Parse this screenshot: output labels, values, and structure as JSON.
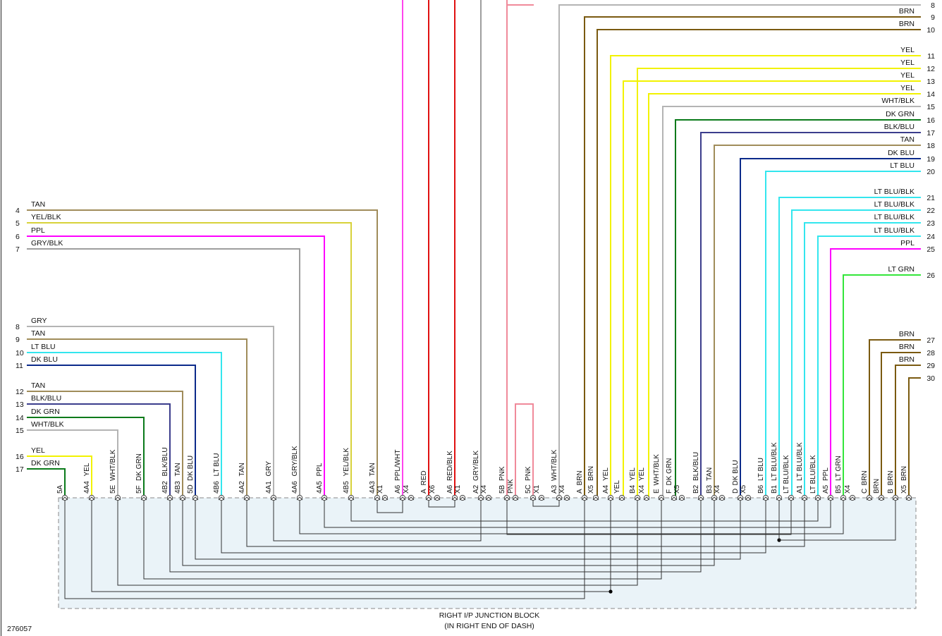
{
  "colors": {
    "TAN": "#a08c5a",
    "YEL/BLK": "#d8d23a",
    "PPL": "#ff00ff",
    "GRY/BLK": "#9e9e9e",
    "GRY": "#b4b4b4",
    "LT BLU": "#33e6ee",
    "DK BLU": "#0b2a8a",
    "BLK/BLU": "#3b3d8c",
    "DK GRN": "#0a7a1a",
    "WHT/BLK": "#b4b4b4",
    "YEL": "#f2f200",
    "PPL/WHT": "#ff44ee",
    "RED": "#e01010",
    "RED/BLK": "#e01010",
    "PNK": "#f08a9a",
    "BRN": "#7a5a10",
    "LT BLU/BLK": "#33e6ee",
    "LT GRN": "#33e63a"
  },
  "block": {
    "title": "RIGHT I/P JUNCTION BLOCK",
    "subtitle": "(IN RIGHT END OF DASH)",
    "fill": "#eaf3f8"
  },
  "figure_id": "276057",
  "left_wires": [
    {
      "num": "4",
      "label": "TAN",
      "color": "TAN"
    },
    {
      "num": "5",
      "label": "YEL/BLK",
      "color": "YEL/BLK"
    },
    {
      "num": "6",
      "label": "PPL",
      "color": "PPL"
    },
    {
      "num": "7",
      "label": "GRY/BLK",
      "color": "GRY/BLK"
    },
    {
      "num": "8",
      "label": "GRY",
      "color": "GRY"
    },
    {
      "num": "9",
      "label": "TAN",
      "color": "TAN"
    },
    {
      "num": "10",
      "label": "LT BLU",
      "color": "LT BLU"
    },
    {
      "num": "11",
      "label": "DK BLU",
      "color": "DK BLU"
    },
    {
      "num": "12",
      "label": "TAN",
      "color": "TAN"
    },
    {
      "num": "13",
      "label": "BLK/BLU",
      "color": "BLK/BLU"
    },
    {
      "num": "14",
      "label": "DK GRN",
      "color": "DK GRN"
    },
    {
      "num": "15",
      "label": "WHT/BLK",
      "color": "WHT/BLK"
    },
    {
      "num": "16",
      "label": "YEL",
      "color": "YEL"
    },
    {
      "num": "17",
      "label": "DK GRN",
      "color": "DK GRN"
    }
  ],
  "right_wires": [
    {
      "num": "8",
      "label": "",
      "color": "GRY"
    },
    {
      "num": "9",
      "label": "BRN",
      "color": "BRN"
    },
    {
      "num": "10",
      "label": "BRN",
      "color": "BRN"
    },
    {
      "num": "11",
      "label": "YEL",
      "color": "YEL"
    },
    {
      "num": "12",
      "label": "YEL",
      "color": "YEL"
    },
    {
      "num": "13",
      "label": "YEL",
      "color": "YEL"
    },
    {
      "num": "14",
      "label": "YEL",
      "color": "YEL"
    },
    {
      "num": "15",
      "label": "WHT/BLK",
      "color": "WHT/BLK"
    },
    {
      "num": "16",
      "label": "DK GRN",
      "color": "DK GRN"
    },
    {
      "num": "17",
      "label": "BLK/BLU",
      "color": "BLK/BLU"
    },
    {
      "num": "18",
      "label": "TAN",
      "color": "TAN"
    },
    {
      "num": "19",
      "label": "DK BLU",
      "color": "DK BLU"
    },
    {
      "num": "20",
      "label": "LT BLU",
      "color": "LT BLU"
    },
    {
      "num": "21",
      "label": "LT BLU/BLK",
      "color": "LT BLU/BLK"
    },
    {
      "num": "22",
      "label": "LT BLU/BLK",
      "color": "LT BLU/BLK"
    },
    {
      "num": "23",
      "label": "LT BLU/BLK",
      "color": "LT BLU/BLK"
    },
    {
      "num": "24",
      "label": "LT BLU/BLK",
      "color": "LT BLU/BLK"
    },
    {
      "num": "25",
      "label": "PPL",
      "color": "PPL"
    },
    {
      "num": "26",
      "label": "LT GRN",
      "color": "LT GRN"
    },
    {
      "num": "27",
      "label": "BRN",
      "color": "BRN"
    },
    {
      "num": "28",
      "label": "BRN",
      "color": "BRN"
    },
    {
      "num": "29",
      "label": "BRN",
      "color": "BRN"
    },
    {
      "num": "30",
      "label": "",
      "color": "BRN"
    }
  ],
  "terminals": [
    {
      "pin": "5A",
      "wire": ""
    },
    {
      "pin": "4A4",
      "wire": "YEL"
    },
    {
      "pin": "5E",
      "wire": "WHT/BLK"
    },
    {
      "pin": "5F",
      "wire": "DK GRN"
    },
    {
      "pin": "4B2",
      "wire": "BLK/BLU"
    },
    {
      "pin": "4B3",
      "wire": "TAN"
    },
    {
      "pin": "5D",
      "wire": "DK BLU"
    },
    {
      "pin": "4B6",
      "wire": "LT BLU"
    },
    {
      "pin": "4A2",
      "wire": "TAN"
    },
    {
      "pin": "4A1",
      "wire": "GRY"
    },
    {
      "pin": "4A6",
      "wire": "GRY/BLK"
    },
    {
      "pin": "4A5",
      "wire": "PPL"
    },
    {
      "pin": "4B5",
      "wire": "YEL/BLK"
    },
    {
      "pin": "4A3",
      "wire": "TAN"
    },
    {
      "pin": "X1",
      "wire": ""
    },
    {
      "pin": "A6",
      "wire": "PPL/WHT"
    },
    {
      "pin": "X4",
      "wire": ""
    },
    {
      "pin": "A",
      "wire": "RED"
    },
    {
      "pin": "X6",
      "wire": ""
    },
    {
      "pin": "A6",
      "wire": "RED/BLK"
    },
    {
      "pin": "X1",
      "wire": ""
    },
    {
      "pin": "A2",
      "wire": "GRY/BLK"
    },
    {
      "pin": "X4",
      "wire": ""
    },
    {
      "pin": "5B",
      "wire": "PNK"
    },
    {
      "pin": "",
      "wire": "PNK"
    },
    {
      "pin": "5C",
      "wire": "PNK"
    },
    {
      "pin": "X1",
      "wire": ""
    },
    {
      "pin": "A3",
      "wire": "WHT/BLK"
    },
    {
      "pin": "X4",
      "wire": ""
    },
    {
      "pin": "A",
      "wire": "BRN"
    },
    {
      "pin": "X5",
      "wire": "BRN"
    },
    {
      "pin": "A4",
      "wire": "YEL"
    },
    {
      "pin": "",
      "wire": "YEL"
    },
    {
      "pin": "B4",
      "wire": "YEL"
    },
    {
      "pin": "X4",
      "wire": "YEL"
    },
    {
      "pin": "E",
      "wire": "WHT/BLK"
    },
    {
      "pin": "F",
      "wire": "DK GRN"
    },
    {
      "pin": "X5",
      "wire": ""
    },
    {
      "pin": "B2",
      "wire": "BLK/BLU"
    },
    {
      "pin": "B3",
      "wire": "TAN"
    },
    {
      "pin": "X4",
      "wire": ""
    },
    {
      "pin": "D",
      "wire": "DK BLU"
    },
    {
      "pin": "X5",
      "wire": ""
    },
    {
      "pin": "B6",
      "wire": "LT BLU"
    },
    {
      "pin": "B1",
      "wire": "LT BLU/BLK"
    },
    {
      "pin": "",
      "wire": "LT BLU/BLK"
    },
    {
      "pin": "A1",
      "wire": "LT BLU/BLK"
    },
    {
      "pin": "",
      "wire": "LT BLU/BLK"
    },
    {
      "pin": "A5",
      "wire": "PPL"
    },
    {
      "pin": "B5",
      "wire": "LT GRN"
    },
    {
      "pin": "X4",
      "wire": ""
    },
    {
      "pin": "C",
      "wire": "BRN"
    },
    {
      "pin": "",
      "wire": "BRN"
    },
    {
      "pin": "B",
      "wire": "BRN"
    },
    {
      "pin": "X5",
      "wire": "BRN"
    }
  ]
}
